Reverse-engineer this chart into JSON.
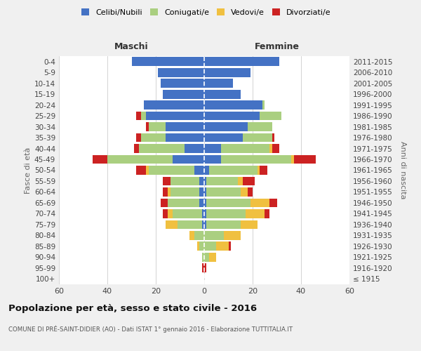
{
  "age_groups": [
    "100+",
    "95-99",
    "90-94",
    "85-89",
    "80-84",
    "75-79",
    "70-74",
    "65-69",
    "60-64",
    "55-59",
    "50-54",
    "45-49",
    "40-44",
    "35-39",
    "30-34",
    "25-29",
    "20-24",
    "15-19",
    "10-14",
    "5-9",
    "0-4"
  ],
  "birth_years": [
    "≤ 1915",
    "1916-1920",
    "1921-1925",
    "1926-1930",
    "1931-1935",
    "1936-1940",
    "1941-1945",
    "1946-1950",
    "1951-1955",
    "1956-1960",
    "1961-1965",
    "1966-1970",
    "1971-1975",
    "1976-1980",
    "1981-1985",
    "1986-1990",
    "1991-1995",
    "1996-2000",
    "2001-2005",
    "2006-2010",
    "2011-2015"
  ],
  "male": {
    "celibi": [
      0,
      0,
      0,
      0,
      0,
      1,
      1,
      2,
      2,
      2,
      4,
      13,
      8,
      16,
      16,
      24,
      25,
      17,
      18,
      19,
      30
    ],
    "coniugati": [
      0,
      0,
      1,
      2,
      4,
      10,
      12,
      13,
      12,
      12,
      19,
      27,
      19,
      10,
      7,
      2,
      0,
      0,
      0,
      0,
      0
    ],
    "vedovi": [
      0,
      0,
      0,
      1,
      2,
      5,
      2,
      0,
      1,
      0,
      1,
      0,
      0,
      0,
      0,
      0,
      0,
      0,
      0,
      0,
      0
    ],
    "divorziati": [
      0,
      1,
      0,
      0,
      0,
      0,
      2,
      3,
      2,
      3,
      4,
      6,
      2,
      2,
      1,
      2,
      0,
      0,
      0,
      0,
      0
    ]
  },
  "female": {
    "nubili": [
      0,
      0,
      0,
      0,
      0,
      1,
      1,
      1,
      1,
      1,
      2,
      7,
      7,
      16,
      18,
      23,
      24,
      15,
      12,
      19,
      31
    ],
    "coniugate": [
      0,
      0,
      2,
      5,
      8,
      14,
      16,
      18,
      14,
      13,
      20,
      29,
      20,
      12,
      10,
      9,
      1,
      0,
      0,
      0,
      0
    ],
    "vedove": [
      0,
      0,
      3,
      5,
      7,
      7,
      8,
      8,
      3,
      2,
      1,
      1,
      1,
      0,
      0,
      0,
      0,
      0,
      0,
      0,
      0
    ],
    "divorziate": [
      0,
      1,
      0,
      1,
      0,
      0,
      2,
      3,
      2,
      5,
      3,
      9,
      3,
      1,
      0,
      0,
      0,
      0,
      0,
      0,
      0
    ]
  },
  "colors": {
    "celibi": "#4472C4",
    "coniugati": "#AACF80",
    "vedovi": "#F0C040",
    "divorziati": "#CC2222"
  },
  "xlim": 60,
  "title": "Popolazione per età, sesso e stato civile - 2016",
  "subtitle": "COMUNE DI PRÉ-SAINT-DIDIER (AO) - Dati ISTAT 1° gennaio 2016 - Elaborazione TUTTITALIA.IT",
  "ylabel_left": "Fasce di età",
  "ylabel_right": "Anni di nascita",
  "xlabel_left": "Maschi",
  "xlabel_right": "Femmine",
  "bg_color": "#f0f0f0",
  "plot_bg": "#ffffff",
  "grid_color": "#cccccc"
}
